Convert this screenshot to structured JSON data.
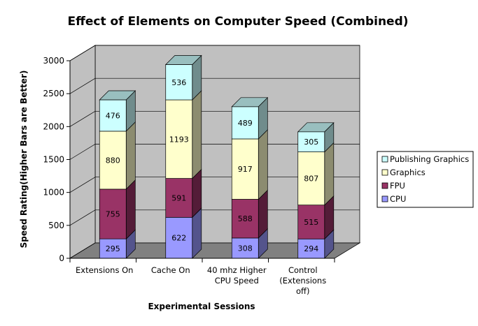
{
  "chart_data": {
    "type": "bar",
    "stacked": true,
    "three_d": true,
    "title": "Effect of Elements on Computer Speed (Combined)",
    "xlabel": "Experimental Sessions",
    "ylabel": "Speed Rating(Higher Bars are Better)",
    "ylim": [
      0,
      3000
    ],
    "yticks": [
      0,
      500,
      1000,
      1500,
      2000,
      2500,
      3000
    ],
    "grid": true,
    "legend_position": "right",
    "categories": [
      [
        "Extensions On"
      ],
      [
        "Cache On"
      ],
      [
        "40 mhz Higher",
        "CPU Speed"
      ],
      [
        "Control",
        "(Extensions",
        "off)"
      ]
    ],
    "series": [
      {
        "name": "CPU",
        "color": "#9999ff",
        "values": [
          295,
          622,
          308,
          294
        ]
      },
      {
        "name": "FPU",
        "color": "#993366",
        "values": [
          755,
          591,
          588,
          515
        ]
      },
      {
        "name": "Graphics",
        "color": "#ffffcc",
        "values": [
          880,
          1193,
          917,
          807
        ]
      },
      {
        "name": "Publishing Graphics",
        "color": "#ccffff",
        "values": [
          476,
          536,
          489,
          305
        ]
      }
    ],
    "wall_color": "#c0c0c0",
    "floor_color": "#808080"
  }
}
